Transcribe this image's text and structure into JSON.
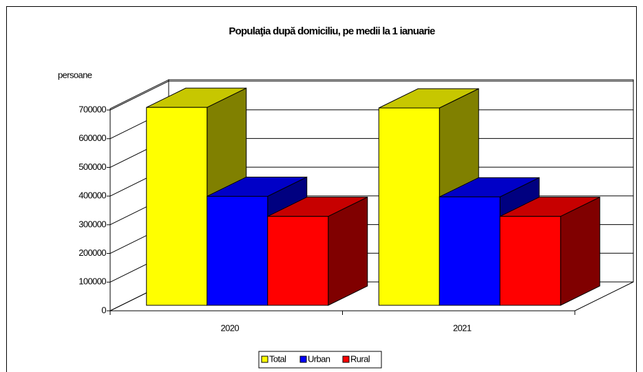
{
  "chart_data": {
    "type": "bar3d",
    "title": "Populaţia după domiciliu, pe medii la 1 ianuarie",
    "y_label": "persoane",
    "categories": [
      "2020",
      "2021"
    ],
    "series": [
      {
        "name": "Total",
        "color": "#ffff00",
        "values": [
          690000,
          688000
        ]
      },
      {
        "name": "Urban",
        "color": "#0000ff",
        "values": [
          380000,
          378000
        ]
      },
      {
        "name": "Rural",
        "color": "#ff0000",
        "values": [
          310000,
          310000
        ]
      }
    ],
    "ylim": [
      0,
      700000
    ],
    "yticks": [
      0,
      100000,
      200000,
      300000,
      400000,
      500000,
      600000,
      700000
    ],
    "grid": true,
    "legend": "bottom"
  }
}
